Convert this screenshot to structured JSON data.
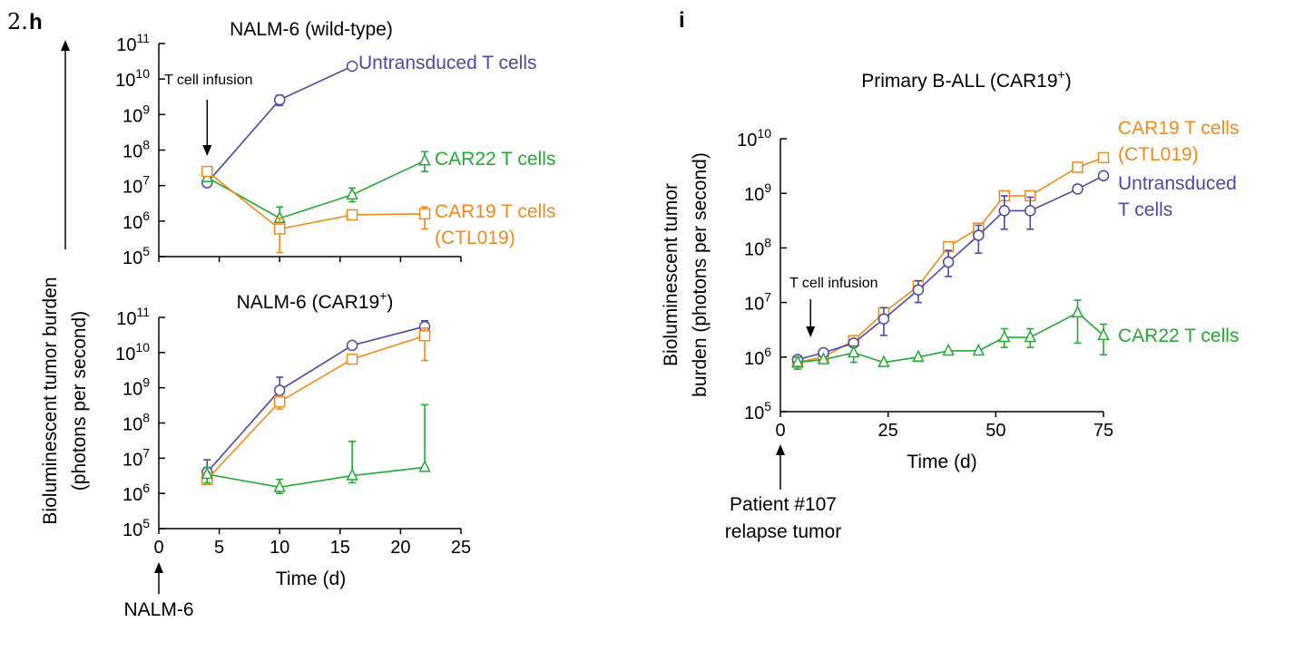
{
  "page": {
    "prefix": "2.",
    "colors": {
      "untransduced": "#4b48a8",
      "car19": "#f08a1c",
      "car22": "#22aa33",
      "axis": "#000000"
    }
  },
  "chart_data": [
    {
      "id": "h-top",
      "panel_label": "h",
      "type": "line",
      "title": "NALM-6 (wild-type)",
      "yscale": "log",
      "ylim": [
        100000,
        100000000000
      ],
      "xlim": [
        0,
        25
      ],
      "ytick_labels": [
        {
          "base": "10",
          "exp": "5"
        },
        {
          "base": "10",
          "exp": "6"
        },
        {
          "base": "10",
          "exp": "7"
        },
        {
          "base": "10",
          "exp": "8"
        },
        {
          "base": "10",
          "exp": "9"
        },
        {
          "base": "10",
          "exp": "10"
        },
        {
          "base": "10",
          "exp": "11"
        }
      ],
      "annotation": "T cell infusion",
      "annotation_x": 4,
      "series": [
        {
          "name": "Untransduced T cells",
          "key": "untransduced",
          "marker": "circle",
          "x": [
            4,
            10,
            16
          ],
          "y": [
            12000000,
            2600000000,
            23000000000
          ],
          "err": [
            null,
            [
              1800000000,
              3500000000
            ],
            null
          ]
        },
        {
          "name": "CAR22 T cells",
          "key": "car22",
          "marker": "triangle",
          "x": [
            4,
            10,
            16,
            22
          ],
          "y": [
            17000000,
            1200000,
            5500000,
            50000000
          ],
          "err": [
            null,
            [
              600000,
              2500000
            ],
            [
              3500000,
              8500000
            ],
            [
              25000000,
              90000000
            ]
          ]
        },
        {
          "name": "CAR19 T cells (CTL019)",
          "key": "car19",
          "marker": "square",
          "x": [
            4,
            10,
            16,
            22
          ],
          "y": [
            25000000,
            600000,
            1500000,
            1600000
          ],
          "err": [
            null,
            [
              130000,
              1200000
            ],
            null,
            [
              600000,
              2500000
            ]
          ]
        }
      ],
      "legend_labels": [
        {
          "key": "untransduced",
          "lines": [
            "Untransduced T cells"
          ],
          "y": 23000000000
        },
        {
          "key": "car22",
          "lines": [
            "CAR22 T cells"
          ],
          "y": 50000000
        },
        {
          "key": "car19",
          "lines": [
            "CAR19 T cells",
            "(CTL019)"
          ],
          "y": 1600000
        }
      ]
    },
    {
      "id": "h-bottom",
      "type": "line",
      "title": "NALM-6 (CAR19",
      "title_sup": "+",
      "title_end": ")",
      "yscale": "log",
      "ylim": [
        100000,
        100000000000
      ],
      "xlim": [
        0,
        25
      ],
      "xticks": [
        0,
        5,
        10,
        15,
        20,
        25
      ],
      "xtick_labels": [
        "0",
        "5",
        "10",
        "15",
        "20",
        "25"
      ],
      "xlabel": "Time (d)",
      "ytick_labels": [
        {
          "base": "10",
          "exp": "5"
        },
        {
          "base": "10",
          "exp": "6"
        },
        {
          "base": "10",
          "exp": "7"
        },
        {
          "base": "10",
          "exp": "8"
        },
        {
          "base": "10",
          "exp": "9"
        },
        {
          "base": "10",
          "exp": "10"
        },
        {
          "base": "10",
          "exp": "11"
        }
      ],
      "bottom_annotation": "NALM-6",
      "series": [
        {
          "name": "Untransduced T cells",
          "key": "untransduced",
          "marker": "circle",
          "x": [
            4,
            10,
            16,
            22
          ],
          "y": [
            4000000,
            850000000,
            16000000000,
            55000000000
          ],
          "err": [
            [
              2000000,
              9000000
            ],
            [
              400000000,
              2000000000
            ],
            null,
            [
              30000000000,
              80000000000
            ]
          ]
        },
        {
          "name": "CAR19 T cells (CTL019)",
          "key": "car19",
          "marker": "square",
          "x": [
            4,
            10,
            16,
            22
          ],
          "y": [
            2500000,
            400000000,
            6500000000,
            30000000000
          ],
          "err": [
            [
              1800000,
              4000000
            ],
            [
              250000000,
              600000000
            ],
            null,
            [
              6000000000,
              50000000000
            ]
          ]
        },
        {
          "name": "CAR22 T cells",
          "key": "car22",
          "marker": "triangle",
          "x": [
            4,
            10,
            16,
            22
          ],
          "y": [
            3500000,
            1500000,
            3200000,
            5500000
          ],
          "err": [
            [
              2000000,
              5500000
            ],
            [
              1000000,
              2500000
            ],
            [
              2000000,
              30000000
            ],
            [
              null,
              330000000
            ]
          ]
        }
      ]
    },
    {
      "id": "i",
      "panel_label": "i",
      "type": "line",
      "title": "Primary B-ALL (CAR19",
      "title_sup": "+",
      "title_end": ")",
      "yscale": "log",
      "ylim": [
        100000,
        10000000000
      ],
      "xlim": [
        0,
        75
      ],
      "xticks": [
        0,
        25,
        50,
        75
      ],
      "xtick_labels": [
        "0",
        "25",
        "50",
        "75"
      ],
      "xlabel": "Time (d)",
      "ylabel_lines": [
        "Bioluminescent tumor",
        "burden (photons per second)"
      ],
      "ytick_labels": [
        {
          "base": "10",
          "exp": "5"
        },
        {
          "base": "10",
          "exp": "6"
        },
        {
          "base": "10",
          "exp": "7"
        },
        {
          "base": "10",
          "exp": "8"
        },
        {
          "base": "10",
          "exp": "9"
        },
        {
          "base": "10",
          "exp": "10"
        }
      ],
      "annotation": "T cell infusion",
      "annotation_x": 7,
      "bottom_annotation_lines": [
        "Patient #107",
        "relapse tumor"
      ],
      "series": [
        {
          "name": "CAR19 T cells (CTL019)",
          "key": "car19",
          "marker": "square",
          "x": [
            4,
            10,
            17,
            24,
            32,
            39,
            46,
            52,
            58,
            69,
            75
          ],
          "y": [
            800000,
            1000000,
            2000000,
            6500000,
            20000000,
            105000000,
            230000000,
            900000000,
            900000000,
            3000000000,
            4500000000
          ],
          "err": [
            null,
            null,
            null,
            null,
            null,
            null,
            null,
            null,
            null,
            null,
            null
          ]
        },
        {
          "name": "Untransduced T cells",
          "key": "untransduced",
          "marker": "circle",
          "x": [
            4,
            10,
            17,
            24,
            32,
            39,
            46,
            52,
            58,
            69,
            75
          ],
          "y": [
            900000,
            1200000,
            1800000,
            5000000,
            17000000,
            55000000,
            170000000,
            480000000,
            480000000,
            1200000000,
            2100000000
          ],
          "err": [
            null,
            null,
            null,
            [
              2500000,
              8000000
            ],
            [
              10000000,
              25000000
            ],
            [
              30000000,
              90000000
            ],
            [
              80000000,
              260000000
            ],
            [
              220000000,
              900000000
            ],
            [
              220000000,
              850000000
            ],
            null,
            null
          ]
        },
        {
          "name": "CAR22 T cells",
          "key": "car22",
          "marker": "triangle",
          "x": [
            4,
            10,
            17,
            24,
            32,
            39,
            46,
            52,
            58,
            69,
            75
          ],
          "y": [
            800000,
            900000,
            1200000,
            800000,
            1000000,
            1300000,
            1300000,
            2300000,
            2300000,
            6500000,
            2500000
          ],
          "err": [
            [
              600000,
              1000000
            ],
            null,
            [
              800000,
              1600000
            ],
            null,
            null,
            null,
            null,
            [
              1500000,
              3300000
            ],
            [
              1500000,
              3300000
            ],
            [
              1800000,
              11000000
            ],
            [
              1100000,
              4000000
            ]
          ]
        }
      ],
      "legend_labels": [
        {
          "key": "car19",
          "lines": [
            "CAR19 T cells",
            "(CTL019)"
          ],
          "y": 4500000000
        },
        {
          "key": "untransduced",
          "lines": [
            "Untransduced",
            "T cells"
          ],
          "y": 1200000000
        },
        {
          "key": "car22",
          "lines": [
            "CAR22 T cells"
          ],
          "y": 2500000
        }
      ]
    }
  ],
  "shared_ylabel_lines": [
    "Bioluminescent tumor burden",
    "(photons per second)"
  ]
}
